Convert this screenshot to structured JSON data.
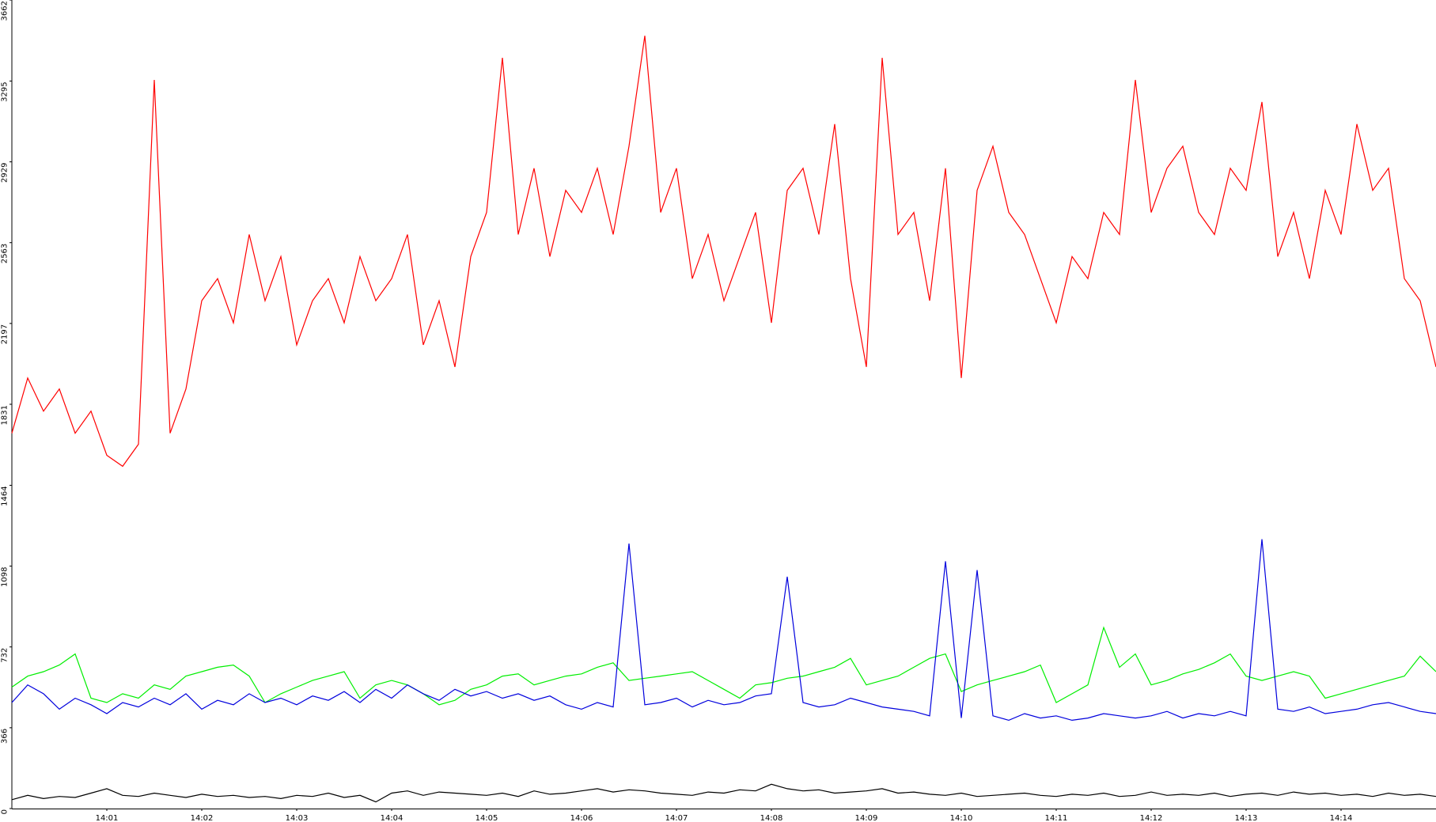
{
  "chart_data": {
    "type": "line",
    "categories": [
      null,
      null,
      null,
      null,
      null,
      null,
      "14:01",
      null,
      null,
      null,
      null,
      null,
      "14:02",
      null,
      null,
      null,
      null,
      null,
      "14:03",
      null,
      null,
      null,
      null,
      null,
      "14:04",
      null,
      null,
      null,
      null,
      null,
      "14:05",
      null,
      null,
      null,
      null,
      null,
      "14:06",
      null,
      null,
      null,
      null,
      null,
      "14:07",
      null,
      null,
      null,
      null,
      null,
      "14:08",
      null,
      null,
      null,
      null,
      null,
      "14:09",
      null,
      null,
      null,
      null,
      null,
      "14:10",
      null,
      null,
      null,
      null,
      null,
      "14:11",
      null,
      null,
      null,
      null,
      null,
      "14:12",
      null,
      null,
      null,
      null,
      null,
      "14:13",
      null,
      null,
      null,
      null,
      null,
      "14:14",
      null,
      null,
      null,
      null,
      null,
      null
    ],
    "series": [
      {
        "color": "#ff0000",
        "values": [
          1700,
          1950,
          1800,
          1900,
          1700,
          1800,
          1600,
          1550,
          1650,
          3300,
          1700,
          1900,
          2300,
          2400,
          2200,
          2600,
          2300,
          2500,
          2100,
          2300,
          2400,
          2200,
          2500,
          2300,
          2400,
          2600,
          2100,
          2300,
          2000,
          2500,
          2700,
          3400,
          2600,
          2900,
          2500,
          2800,
          2700,
          2900,
          2600,
          3000,
          3500,
          2700,
          2900,
          2400,
          2600,
          2300,
          2500,
          2700,
          2200,
          2800,
          2900,
          2600,
          3100,
          2400,
          2000,
          3400,
          2600,
          2700,
          2300,
          2900,
          1950,
          2800,
          3000,
          2700,
          2600,
          2400,
          2200,
          2500,
          2400,
          2700,
          2600,
          3300,
          2700,
          2900,
          3000,
          2700,
          2600,
          2900,
          2800,
          3200,
          2500,
          2700,
          2400,
          2800,
          2600,
          3100,
          2800,
          2900,
          2400,
          2300,
          2000
        ]
      },
      {
        "color": "#00ee00",
        "values": [
          550,
          600,
          620,
          650,
          700,
          500,
          480,
          520,
          500,
          560,
          540,
          600,
          620,
          640,
          650,
          600,
          480,
          520,
          550,
          580,
          600,
          620,
          500,
          560,
          580,
          560,
          520,
          470,
          490,
          540,
          560,
          600,
          610,
          560,
          580,
          600,
          610,
          640,
          660,
          580,
          590,
          600,
          610,
          620,
          580,
          540,
          500,
          560,
          570,
          590,
          600,
          620,
          640,
          680,
          560,
          580,
          600,
          640,
          680,
          700,
          530,
          560,
          580,
          600,
          620,
          650,
          480,
          520,
          560,
          820,
          640,
          700,
          560,
          580,
          610,
          630,
          660,
          700,
          600,
          580,
          600,
          620,
          600,
          500,
          520,
          540,
          560,
          580,
          600,
          690,
          620
        ]
      },
      {
        "color": "#0000dd",
        "values": [
          480,
          560,
          520,
          450,
          500,
          470,
          430,
          480,
          460,
          500,
          470,
          520,
          450,
          490,
          470,
          520,
          480,
          500,
          470,
          510,
          490,
          530,
          480,
          540,
          500,
          560,
          520,
          490,
          540,
          510,
          530,
          500,
          520,
          490,
          510,
          470,
          450,
          480,
          460,
          1200,
          470,
          480,
          500,
          460,
          490,
          470,
          480,
          510,
          520,
          1050,
          480,
          460,
          470,
          500,
          480,
          460,
          450,
          440,
          420,
          1120,
          410,
          1080,
          420,
          400,
          430,
          410,
          420,
          400,
          410,
          430,
          420,
          410,
          420,
          440,
          410,
          430,
          420,
          440,
          420,
          1220,
          450,
          440,
          460,
          430,
          440,
          450,
          470,
          480,
          460,
          440,
          430
        ]
      },
      {
        "color": "#000000",
        "values": [
          40,
          60,
          45,
          55,
          50,
          70,
          90,
          60,
          55,
          70,
          60,
          50,
          65,
          55,
          60,
          50,
          55,
          45,
          60,
          55,
          70,
          50,
          60,
          30,
          70,
          80,
          60,
          75,
          70,
          65,
          60,
          70,
          55,
          80,
          65,
          70,
          80,
          90,
          75,
          85,
          80,
          70,
          65,
          60,
          75,
          70,
          85,
          80,
          110,
          90,
          80,
          85,
          70,
          75,
          80,
          90,
          70,
          75,
          65,
          60,
          70,
          55,
          60,
          65,
          70,
          60,
          55,
          65,
          60,
          70,
          55,
          60,
          75,
          60,
          65,
          60,
          70,
          55,
          65,
          70,
          60,
          75,
          65,
          70,
          60,
          65,
          55,
          70,
          60,
          65,
          55
        ]
      }
    ],
    "ylim": [
      0,
      3662
    ],
    "yticks": [
      0,
      366,
      732,
      1098,
      1464,
      1831,
      2197,
      2563,
      2929,
      3295,
      3662
    ],
    "grid": false
  }
}
